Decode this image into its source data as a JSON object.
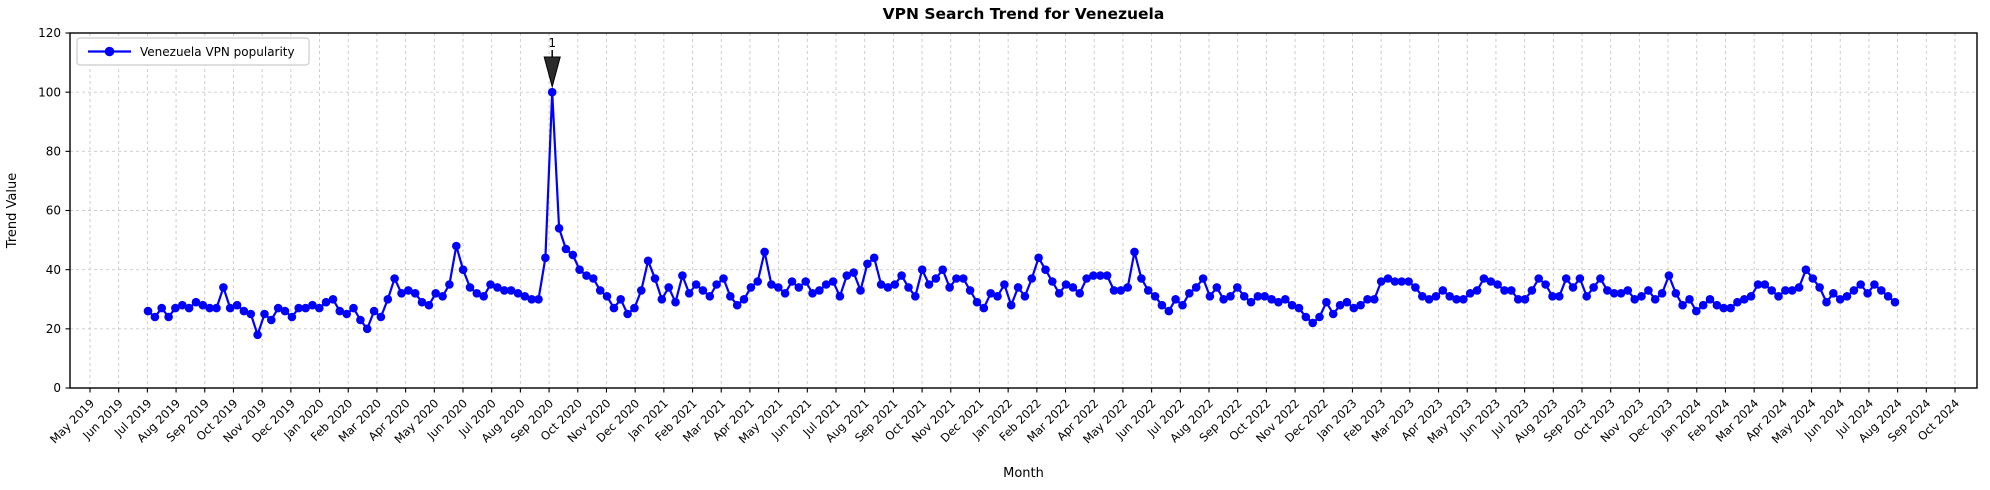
{
  "chart_data": {
    "type": "line",
    "title": "VPN Search Trend for Venezuela",
    "xlabel": "Month",
    "ylabel": "Trend Value",
    "ylim": [
      0,
      120
    ],
    "yticks": [
      0,
      20,
      40,
      60,
      80,
      100,
      120
    ],
    "grid": "both-dashed",
    "legend_position": "upper-left",
    "categories": [
      "May 2019",
      "Jun 2019",
      "Jul 2019",
      "Aug 2019",
      "Sep 2019",
      "Oct 2019",
      "Nov 2019",
      "Dec 2019",
      "Jan 2020",
      "Feb 2020",
      "Mar 2020",
      "Apr 2020",
      "May 2020",
      "Jun 2020",
      "Jul 2020",
      "Aug 2020",
      "Sep 2020",
      "Oct 2020",
      "Nov 2020",
      "Dec 2020",
      "Jan 2021",
      "Feb 2021",
      "Mar 2021",
      "Apr 2021",
      "May 2021",
      "Jun 2021",
      "Jul 2021",
      "Aug 2021",
      "Sep 2021",
      "Oct 2021",
      "Nov 2021",
      "Dec 2021",
      "Jan 2022",
      "Feb 2022",
      "Mar 2022",
      "Apr 2022",
      "May 2022",
      "Jun 2022",
      "Jul 2022",
      "Aug 2022",
      "Sep 2022",
      "Oct 2022",
      "Nov 2022",
      "Dec 2022",
      "Jan 2023",
      "Feb 2023",
      "Mar 2023",
      "Apr 2023",
      "May 2023",
      "Jun 2023",
      "Jul 2023",
      "Aug 2023",
      "Sep 2023",
      "Oct 2023",
      "Nov 2023",
      "Dec 2023",
      "Jan 2024",
      "Feb 2024",
      "Mar 2024",
      "Apr 2024",
      "May 2024",
      "Jun 2024",
      "Jul 2024",
      "Aug 2024",
      "Sep 2024",
      "Oct 2024"
    ],
    "series": [
      {
        "name": "Venezuela VPN popularity",
        "color": "#0000ff",
        "marker": "circle",
        "x_start_month": "Jul 2019",
        "x_end_month": "Jul 2024",
        "interval": "weekly",
        "values": [
          26,
          24,
          27,
          24,
          27,
          28,
          27,
          29,
          28,
          27,
          27,
          34,
          27,
          28,
          26,
          25,
          18,
          25,
          23,
          27,
          26,
          24,
          27,
          27,
          28,
          27,
          29,
          30,
          26,
          25,
          27,
          23,
          20,
          26,
          24,
          30,
          37,
          32,
          33,
          32,
          29,
          28,
          32,
          31,
          35,
          48,
          40,
          34,
          32,
          31,
          35,
          34,
          33,
          33,
          32,
          31,
          30,
          30,
          44,
          100,
          54,
          47,
          45,
          40,
          38,
          37,
          33,
          31,
          27,
          30,
          25,
          27,
          33,
          43,
          37,
          30,
          34,
          29,
          38,
          32,
          35,
          33,
          31,
          35,
          37,
          31,
          28,
          30,
          34,
          36,
          46,
          35,
          34,
          32,
          36,
          34,
          36,
          32,
          33,
          35,
          36,
          31,
          38,
          39,
          33,
          42,
          44,
          35,
          34,
          35,
          38,
          34,
          31,
          40,
          35,
          37,
          40,
          34,
          37,
          37,
          33,
          29,
          27,
          32,
          31,
          35,
          28,
          34,
          31,
          37,
          44,
          40,
          36,
          32,
          35,
          34,
          32,
          37,
          38,
          38,
          38,
          33,
          33,
          34,
          46,
          37,
          33,
          31,
          28,
          26,
          30,
          28,
          32,
          34,
          37,
          31,
          34,
          30,
          31,
          34,
          31,
          29,
          31,
          31,
          30,
          29,
          30,
          28,
          27,
          24,
          22,
          24,
          29,
          25,
          28,
          29,
          27,
          28,
          30,
          30,
          36,
          37,
          36,
          36,
          36,
          34,
          31,
          30,
          31,
          33,
          31,
          30,
          30,
          32,
          33,
          37,
          36,
          35,
          33,
          33,
          30,
          30,
          33,
          37,
          35,
          31,
          31,
          37,
          34,
          37,
          31,
          34,
          37,
          33,
          32,
          32,
          33,
          30,
          31,
          33,
          30,
          32,
          38,
          32,
          28,
          30,
          26,
          28,
          30,
          28,
          27,
          27,
          29,
          30,
          31,
          35,
          35,
          33,
          31,
          33,
          33,
          34,
          40,
          37,
          34,
          29,
          32,
          30,
          31,
          33,
          35,
          32,
          35,
          33,
          31,
          29
        ]
      }
    ],
    "annotations": [
      {
        "label": "1",
        "target_value": 100,
        "arrow": "black-wedge-down"
      }
    ],
    "colors": {
      "line": "#0000ff",
      "grid": "#c9c9c9",
      "spine": "#000000",
      "arrow_fill": "#2b2b2b",
      "legend_border": "#cccccc",
      "background": "#ffffff"
    }
  }
}
